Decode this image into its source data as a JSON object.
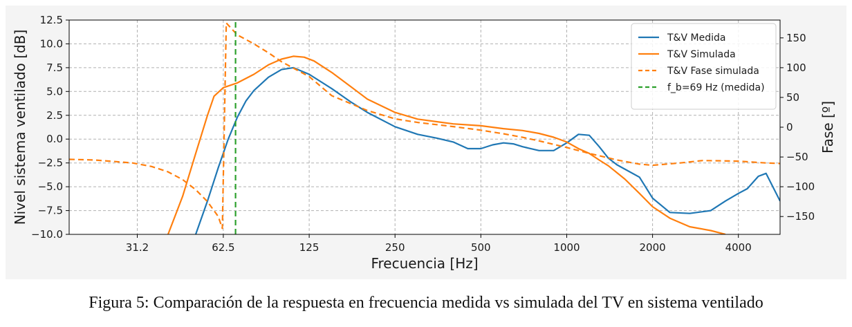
{
  "chart_data": {
    "type": "line",
    "xlabel": "Frecuencia [Hz]",
    "ylabel": "Nivel sistema ventilado [dB]",
    "y2label": "Fase [º]",
    "x_scale": "log",
    "xlim": [
      18,
      5600
    ],
    "ylim": [
      -10,
      12.5
    ],
    "y2lim": [
      -180,
      180
    ],
    "x_ticks": [
      31.2,
      62.5,
      125,
      250,
      500,
      1000,
      2000,
      4000
    ],
    "x_tick_labels": [
      "31.2",
      "62.5",
      "125",
      "250",
      "500",
      "1000",
      "2000",
      "4000"
    ],
    "y_ticks": [
      -10,
      -7.5,
      -5,
      -2.5,
      0,
      2.5,
      5,
      7.5,
      10,
      12.5
    ],
    "y_tick_labels": [
      "−10.0",
      "−7.5",
      "−5.0",
      "−2.5",
      "0.0",
      "2.5",
      "5.0",
      "7.5",
      "10.0",
      "12.5"
    ],
    "y2_ticks": [
      -150,
      -100,
      -50,
      0,
      50,
      100,
      150
    ],
    "y2_tick_labels": [
      "−150",
      "−100",
      "−50",
      "0",
      "50",
      "100",
      "150"
    ],
    "grid": true,
    "legend_position": "top-right",
    "series": [
      {
        "name": "T&V Medida",
        "color": "#1f77b4",
        "style": "solid",
        "axis": "left",
        "x": [
          50,
          55,
          60,
          65,
          70,
          75,
          80,
          90,
          100,
          110,
          125,
          150,
          175,
          200,
          250,
          300,
          350,
          400,
          450,
          500,
          550,
          600,
          650,
          700,
          800,
          900,
          1000,
          1100,
          1200,
          1300,
          1400,
          1500,
          1800,
          2000,
          2300,
          2700,
          3200,
          3600,
          4000,
          4300,
          4700,
          5000,
          5600
        ],
        "y": [
          -10,
          -6.5,
          -3,
          0,
          2.3,
          4,
          5.1,
          6.5,
          7.3,
          7.5,
          6.8,
          5.3,
          3.9,
          2.8,
          1.3,
          0.5,
          0.1,
          -0.3,
          -1,
          -1,
          -0.6,
          -0.4,
          -0.5,
          -0.8,
          -1.2,
          -1.2,
          -0.4,
          0.5,
          0.4,
          -0.8,
          -2,
          -2.7,
          -4,
          -6.2,
          -7.7,
          -7.8,
          -7.5,
          -6.5,
          -5.7,
          -5.2,
          -3.9,
          -3.6,
          -6.5
        ]
      },
      {
        "name": "T&V Simulada",
        "color": "#ff7f0e",
        "style": "solid",
        "axis": "left",
        "x": [
          40,
          45,
          50,
          55,
          58,
          62.5,
          70,
          80,
          90,
          100,
          110,
          120,
          130,
          150,
          175,
          200,
          250,
          300,
          400,
          500,
          600,
          700,
          800,
          900,
          1000,
          1100,
          1200,
          1300,
          1400,
          1600,
          1800,
          2000,
          2300,
          2700,
          3200,
          3600
        ],
        "y": [
          -10,
          -6,
          -1.5,
          2.5,
          4.5,
          5.4,
          5.9,
          6.8,
          7.8,
          8.4,
          8.7,
          8.6,
          8.2,
          7,
          5.5,
          4.2,
          2.8,
          2.1,
          1.6,
          1.4,
          1.1,
          0.9,
          0.6,
          0.2,
          -0.3,
          -1,
          -1.5,
          -2.2,
          -2.8,
          -4.2,
          -5.7,
          -7.1,
          -8.3,
          -9.2,
          -9.6,
          -10
        ]
      },
      {
        "name": "T&V Fase simulada",
        "color": "#ff7f0e",
        "style": "dashed",
        "axis": "right",
        "x": [
          18,
          22,
          25,
          30,
          35,
          40,
          45,
          50,
          55,
          60,
          62,
          64,
          70,
          80,
          90,
          100,
          125,
          150,
          200,
          250,
          300,
          400,
          500,
          600,
          700,
          800,
          1000,
          1200,
          1500,
          1800,
          2000,
          2500,
          3000,
          4000,
          5000,
          5600
        ],
        "y": [
          -54,
          -55,
          -57,
          -60,
          -66,
          -75,
          -88,
          -105,
          -125,
          -150,
          -170,
          175,
          155,
          140,
          125,
          110,
          85,
          53,
          28,
          14,
          8,
          1,
          -5,
          -11,
          -17,
          -23,
          -34,
          -44,
          -55,
          -62,
          -64,
          -60,
          -56,
          -57,
          -60,
          -61
        ]
      },
      {
        "name": "f_b=69 Hz (medida)",
        "color": "#2ca02c",
        "style": "dashed",
        "axis": "left",
        "x": [
          69,
          69
        ],
        "y": [
          -10,
          12.5
        ]
      }
    ]
  },
  "caption": "Figura 5: Comparación de la respuesta en frecuencia medida vs simulada del TV en sistema ventilado"
}
